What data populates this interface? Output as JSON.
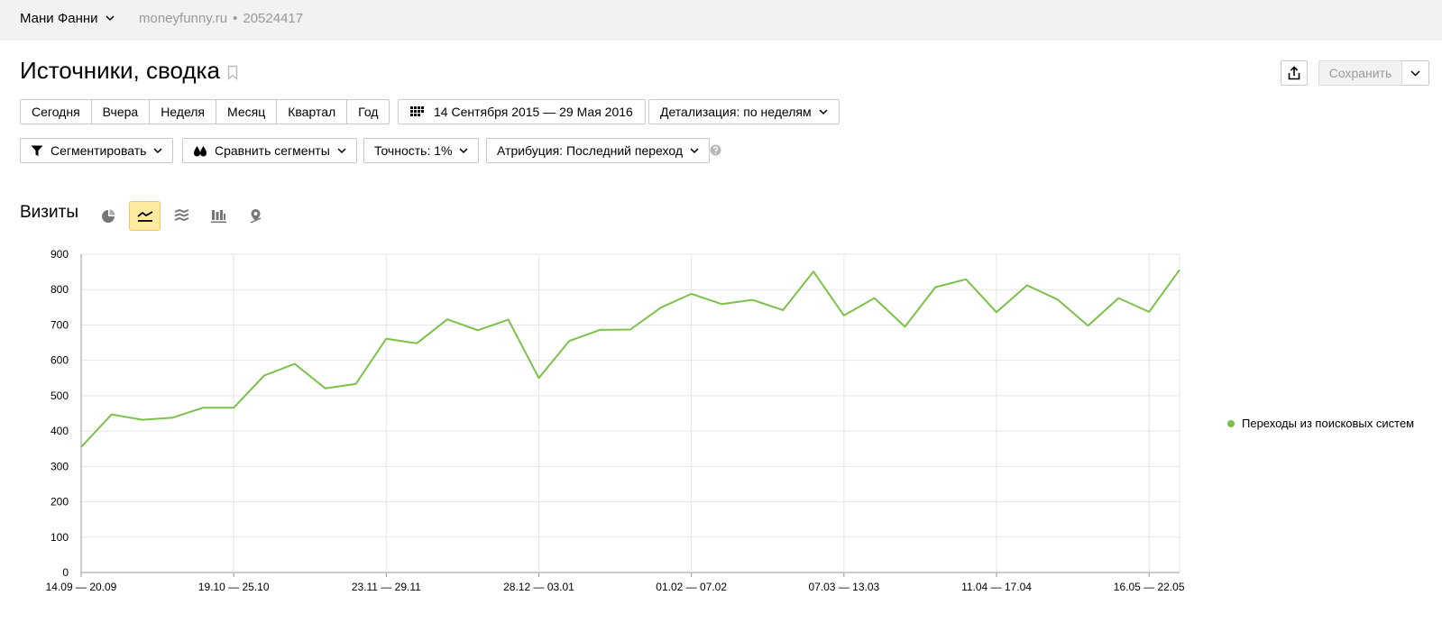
{
  "header": {
    "counter_name": "Мани Фанни",
    "site": "moneyfunny.ru",
    "separator": "•",
    "counter_id": "20524417"
  },
  "page": {
    "title": "Источники, сводка",
    "save_label": "Сохранить"
  },
  "periods": [
    "Сегодня",
    "Вчера",
    "Неделя",
    "Месяц",
    "Квартал",
    "Год"
  ],
  "date_range": "14 Сентября 2015 — 29 Мая 2016",
  "detail": "Детализация: по неделям",
  "filters": {
    "segment": "Сегментировать",
    "compare": "Сравнить сегменты",
    "accuracy": "Точность: 1%",
    "attribution": "Атрибуция: Последний переход"
  },
  "section": {
    "title": "Визиты",
    "chart_types": [
      "pie-chart-icon",
      "line-chart-icon",
      "stacked-area-icon",
      "bar-chart-icon",
      "map-icon"
    ],
    "active_chart_type": "line-chart-icon"
  },
  "colors": {
    "series": "#7cc14a",
    "active_tool": "#ffeba0"
  },
  "chart_data": {
    "type": "line",
    "ylim": [
      0,
      900
    ],
    "y_ticks": [
      0,
      100,
      200,
      300,
      400,
      500,
      600,
      700,
      800,
      900
    ],
    "x_tick_labels": [
      "14.09 — 20.09",
      "19.10 — 25.10",
      "23.11 — 29.11",
      "28.12 — 03.01",
      "01.02 — 07.02",
      "07.03 — 13.03",
      "11.04 — 17.04",
      "16.05 — 22.05"
    ],
    "x_tick_every": 5,
    "grid": true,
    "legend_position": "right",
    "series": [
      {
        "name": "Переходы из поисковых систем",
        "values": [
          355,
          447,
          432,
          438,
          466,
          466,
          557,
          590,
          521,
          533,
          661,
          648,
          716,
          685,
          715,
          550,
          655,
          686,
          687,
          749,
          788,
          759,
          771,
          742,
          851,
          727,
          776,
          695,
          807,
          829,
          736,
          812,
          772,
          698,
          776,
          737,
          856
        ]
      }
    ]
  }
}
